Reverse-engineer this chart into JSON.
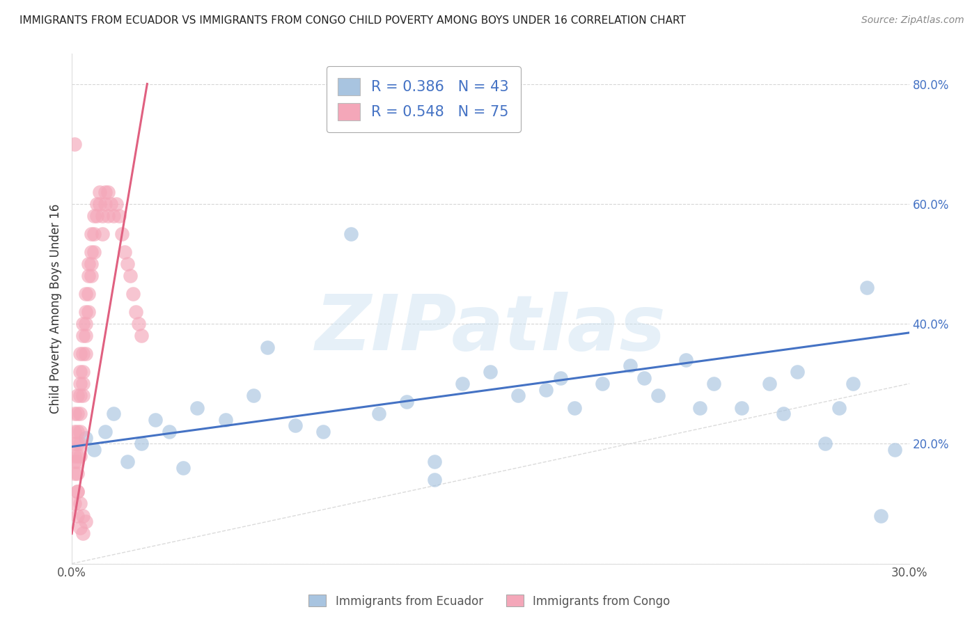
{
  "title": "IMMIGRANTS FROM ECUADOR VS IMMIGRANTS FROM CONGO CHILD POVERTY AMONG BOYS UNDER 16 CORRELATION CHART",
  "source": "Source: ZipAtlas.com",
  "ylabel": "Child Poverty Among Boys Under 16",
  "xlim": [
    0.0,
    0.3
  ],
  "ylim": [
    0.0,
    0.85
  ],
  "xticks": [
    0.0,
    0.05,
    0.1,
    0.15,
    0.2,
    0.25,
    0.3
  ],
  "yticks": [
    0.0,
    0.2,
    0.4,
    0.6,
    0.8
  ],
  "ytick_labels": [
    "",
    "20.0%",
    "40.0%",
    "60.0%",
    "80.0%"
  ],
  "xtick_labels": [
    "0.0%",
    "",
    "",
    "",
    "",
    "",
    "30.0%"
  ],
  "ecuador_color": "#a8c4e0",
  "congo_color": "#f4a7b9",
  "ecuador_line_color": "#4472c4",
  "congo_line_color": "#e06080",
  "R_ecuador": 0.386,
  "N_ecuador": 43,
  "R_congo": 0.548,
  "N_congo": 75,
  "legend_label_ecuador": "Immigrants from Ecuador",
  "legend_label_congo": "Immigrants from Congo",
  "watermark": "ZIPatlas",
  "background_color": "#ffffff",
  "grid_color": "#cccccc",
  "ecuador_x": [
    0.005,
    0.008,
    0.012,
    0.015,
    0.02,
    0.025,
    0.03,
    0.035,
    0.04,
    0.045,
    0.055,
    0.065,
    0.07,
    0.08,
    0.09,
    0.1,
    0.11,
    0.12,
    0.13,
    0.14,
    0.15,
    0.16,
    0.17,
    0.175,
    0.18,
    0.19,
    0.2,
    0.205,
    0.21,
    0.22,
    0.225,
    0.23,
    0.24,
    0.25,
    0.255,
    0.26,
    0.27,
    0.275,
    0.28,
    0.285,
    0.29,
    0.295,
    0.13
  ],
  "ecuador_y": [
    0.21,
    0.19,
    0.22,
    0.25,
    0.17,
    0.2,
    0.24,
    0.22,
    0.16,
    0.26,
    0.24,
    0.28,
    0.36,
    0.23,
    0.22,
    0.55,
    0.25,
    0.27,
    0.14,
    0.3,
    0.32,
    0.28,
    0.29,
    0.31,
    0.26,
    0.3,
    0.33,
    0.31,
    0.28,
    0.34,
    0.26,
    0.3,
    0.26,
    0.3,
    0.25,
    0.32,
    0.2,
    0.26,
    0.3,
    0.46,
    0.08,
    0.19,
    0.17
  ],
  "congo_x": [
    0.001,
    0.001,
    0.001,
    0.001,
    0.001,
    0.001,
    0.001,
    0.002,
    0.002,
    0.002,
    0.002,
    0.002,
    0.002,
    0.002,
    0.002,
    0.003,
    0.003,
    0.003,
    0.003,
    0.003,
    0.003,
    0.003,
    0.003,
    0.004,
    0.004,
    0.004,
    0.004,
    0.004,
    0.004,
    0.005,
    0.005,
    0.005,
    0.005,
    0.005,
    0.006,
    0.006,
    0.006,
    0.006,
    0.007,
    0.007,
    0.007,
    0.007,
    0.008,
    0.008,
    0.008,
    0.009,
    0.009,
    0.01,
    0.01,
    0.011,
    0.011,
    0.012,
    0.012,
    0.013,
    0.013,
    0.014,
    0.015,
    0.016,
    0.017,
    0.018,
    0.019,
    0.02,
    0.021,
    0.022,
    0.023,
    0.024,
    0.025,
    0.002,
    0.003,
    0.004,
    0.001,
    0.002,
    0.003,
    0.004,
    0.005
  ],
  "congo_y": [
    0.22,
    0.25,
    0.2,
    0.18,
    0.17,
    0.15,
    0.1,
    0.28,
    0.25,
    0.22,
    0.2,
    0.18,
    0.17,
    0.15,
    0.12,
    0.35,
    0.32,
    0.3,
    0.28,
    0.25,
    0.22,
    0.2,
    0.18,
    0.4,
    0.38,
    0.35,
    0.32,
    0.3,
    0.28,
    0.45,
    0.42,
    0.4,
    0.38,
    0.35,
    0.5,
    0.48,
    0.45,
    0.42,
    0.55,
    0.52,
    0.5,
    0.48,
    0.58,
    0.55,
    0.52,
    0.6,
    0.58,
    0.62,
    0.6,
    0.58,
    0.55,
    0.62,
    0.6,
    0.62,
    0.58,
    0.6,
    0.58,
    0.6,
    0.58,
    0.55,
    0.52,
    0.5,
    0.48,
    0.45,
    0.42,
    0.4,
    0.38,
    0.08,
    0.06,
    0.05,
    0.7,
    0.12,
    0.1,
    0.08,
    0.07
  ],
  "ec_line_x0": 0.0,
  "ec_line_y0": 0.195,
  "ec_line_x1": 0.3,
  "ec_line_y1": 0.385,
  "co_line_x0": 0.0,
  "co_line_y0": 0.05,
  "co_line_x1": 0.027,
  "co_line_y1": 0.8
}
